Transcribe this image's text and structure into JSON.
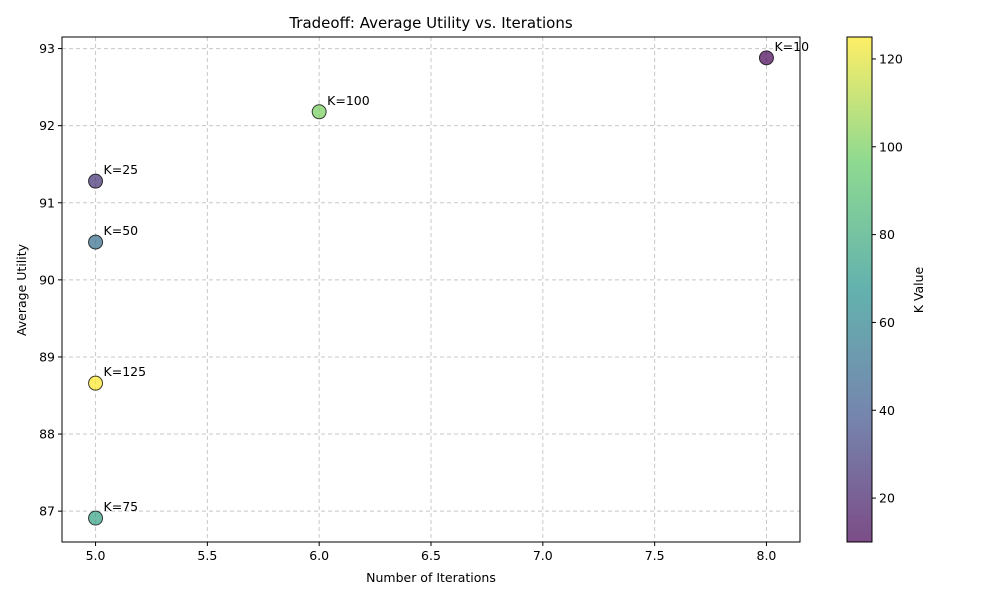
{
  "chart_data": {
    "type": "scatter",
    "title": "Tradeoff: Average Utility vs. Iterations",
    "xlabel": "Number of Iterations",
    "ylabel": "Average Utility",
    "xlim": [
      4.85,
      8.15
    ],
    "ylim": [
      86.6,
      93.15
    ],
    "xticks": [
      "5.0",
      "5.5",
      "6.0",
      "6.5",
      "7.0",
      "7.5",
      "8.0"
    ],
    "yticks": [
      "87",
      "88",
      "89",
      "90",
      "91",
      "92",
      "93"
    ],
    "grid": true,
    "colormap": "viridis",
    "marker_alpha": 0.7,
    "points": [
      {
        "k": 10,
        "label": "K=10",
        "x": 8.0,
        "y": 92.88
      },
      {
        "k": 25,
        "label": "K=25",
        "x": 5.0,
        "y": 91.28
      },
      {
        "k": 50,
        "label": "K=50",
        "x": 5.0,
        "y": 90.49
      },
      {
        "k": 75,
        "label": "K=75",
        "x": 5.0,
        "y": 86.91
      },
      {
        "k": 100,
        "label": "K=100",
        "x": 6.0,
        "y": 92.18
      },
      {
        "k": 125,
        "label": "K=125",
        "x": 5.0,
        "y": 88.66
      }
    ],
    "colorbar": {
      "label": "K Value",
      "range": [
        10,
        125
      ],
      "ticks": [
        "20",
        "40",
        "60",
        "80",
        "100",
        "120"
      ]
    }
  }
}
